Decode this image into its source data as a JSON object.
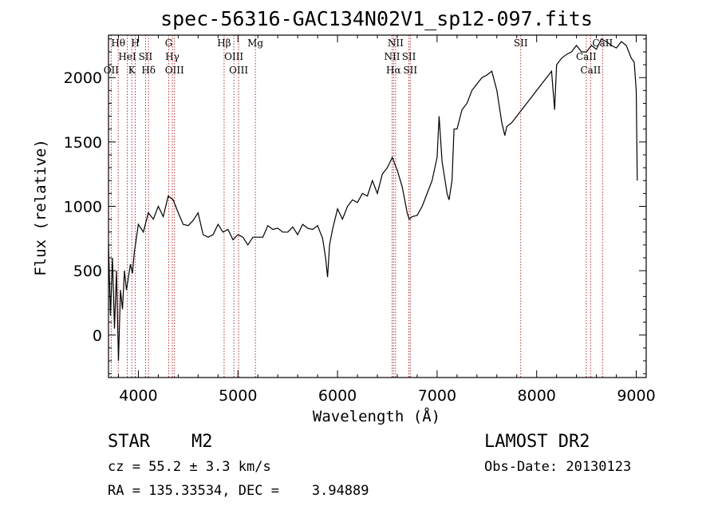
{
  "chart_data": {
    "type": "line",
    "title": "spec-56316-GAC134N02V1_sp12-097.fits",
    "xlabel": "Wavelength (Å)",
    "ylabel": "Flux (relative)",
    "xlim": [
      3700,
      9100
    ],
    "ylim": [
      -330,
      2330
    ],
    "x_ticks": [
      4000,
      5000,
      6000,
      7000,
      8000,
      9000
    ],
    "y_ticks": [
      0,
      500,
      1000,
      1500,
      2000
    ],
    "grid": false,
    "line_color": "#000000",
    "marker_color": "#b03030",
    "spectral_lines": [
      {
        "label": "OII",
        "wavelength": 3727
      },
      {
        "label": "Hθ",
        "wavelength": 3798
      },
      {
        "label": "HeI",
        "wavelength": 3889
      },
      {
        "label": "K",
        "wavelength": 3934
      },
      {
        "label": "H",
        "wavelength": 3969
      },
      {
        "label": "SII",
        "wavelength": 4072
      },
      {
        "label": "Hδ",
        "wavelength": 4102
      },
      {
        "label": "G",
        "wavelength": 4305
      },
      {
        "label": "Hγ",
        "wavelength": 4341
      },
      {
        "label": "OIII",
        "wavelength": 4363
      },
      {
        "label": "Hβ",
        "wavelength": 4861
      },
      {
        "label": "OIII",
        "wavelength": 4959
      },
      {
        "label": "OIII",
        "wavelength": 5007
      },
      {
        "label": "Mg",
        "wavelength": 5175
      },
      {
        "label": "NII",
        "wavelength": 6548
      },
      {
        "label": "Hα",
        "wavelength": 6563
      },
      {
        "label": "NII",
        "wavelength": 6583
      },
      {
        "label": "SII",
        "wavelength": 6717
      },
      {
        "label": "SII",
        "wavelength": 6731
      },
      {
        "label": "SII",
        "wavelength": 7840
      },
      {
        "label": "CaII",
        "wavelength": 8498
      },
      {
        "label": "CaII",
        "wavelength": 8542
      },
      {
        "label": "CaII",
        "wavelength": 8662
      }
    ],
    "series": [
      {
        "x": [
          3700,
          3720,
          3740,
          3760,
          3780,
          3800,
          3820,
          3840,
          3860,
          3880,
          3900,
          3920,
          3940,
          3960,
          3980,
          4000,
          4050,
          4100,
          4150,
          4200,
          4250,
          4300,
          4350,
          4400,
          4450,
          4500,
          4550,
          4600,
          4650,
          4700,
          4750,
          4800,
          4850,
          4900,
          4950,
          5000,
          5050,
          5100,
          5150,
          5200,
          5250,
          5300,
          5350,
          5400,
          5450,
          5500,
          5550,
          5600,
          5650,
          5700,
          5750,
          5800,
          5850,
          5880,
          5900,
          5920,
          5950,
          6000,
          6050,
          6100,
          6150,
          6200,
          6250,
          6300,
          6350,
          6400,
          6450,
          6500,
          6550,
          6600,
          6650,
          6700,
          6720,
          6750,
          6800,
          6850,
          6900,
          6950,
          7000,
          7020,
          7050,
          7080,
          7100,
          7120,
          7150,
          7170,
          7200,
          7250,
          7300,
          7350,
          7400,
          7450,
          7500,
          7550,
          7600,
          7650,
          7680,
          7700,
          7750,
          7800,
          7850,
          7900,
          7950,
          8000,
          8050,
          8100,
          8150,
          8180,
          8200,
          8250,
          8300,
          8350,
          8400,
          8450,
          8500,
          8550,
          8600,
          8650,
          8700,
          8750,
          8800,
          8850,
          8900,
          8950,
          8980,
          9000,
          9010
        ],
        "y": [
          700,
          150,
          600,
          50,
          500,
          -200,
          350,
          200,
          500,
          350,
          450,
          550,
          480,
          650,
          750,
          860,
          800,
          950,
          900,
          1000,
          920,
          1080,
          1050,
          950,
          860,
          850,
          890,
          950,
          780,
          760,
          780,
          860,
          800,
          820,
          740,
          780,
          760,
          700,
          760,
          760,
          760,
          850,
          820,
          830,
          800,
          800,
          840,
          780,
          860,
          830,
          820,
          850,
          750,
          600,
          450,
          700,
          820,
          980,
          900,
          1000,
          1050,
          1030,
          1100,
          1080,
          1200,
          1100,
          1250,
          1300,
          1380,
          1280,
          1150,
          950,
          900,
          920,
          930,
          1000,
          1100,
          1200,
          1380,
          1700,
          1350,
          1200,
          1100,
          1050,
          1200,
          1600,
          1600,
          1750,
          1800,
          1900,
          1950,
          2000,
          2020,
          2050,
          1900,
          1650,
          1550,
          1620,
          1650,
          1700,
          1750,
          1800,
          1850,
          1900,
          1950,
          2000,
          2050,
          1750,
          2100,
          2150,
          2180,
          2200,
          2250,
          2200,
          2200,
          2250,
          2220,
          2300,
          2280,
          2250,
          2230,
          2280,
          2250,
          2150,
          2120,
          1900,
          1200
        ]
      }
    ]
  },
  "info": {
    "object_class": "STAR",
    "subclass": "M2",
    "survey": "LAMOST DR2",
    "cz": "cz = 55.2 ± 3.3 km/s",
    "coords": "RA = 135.33534, DEC =    3.94889",
    "obs_date": "Obs-Date: 20130123"
  }
}
